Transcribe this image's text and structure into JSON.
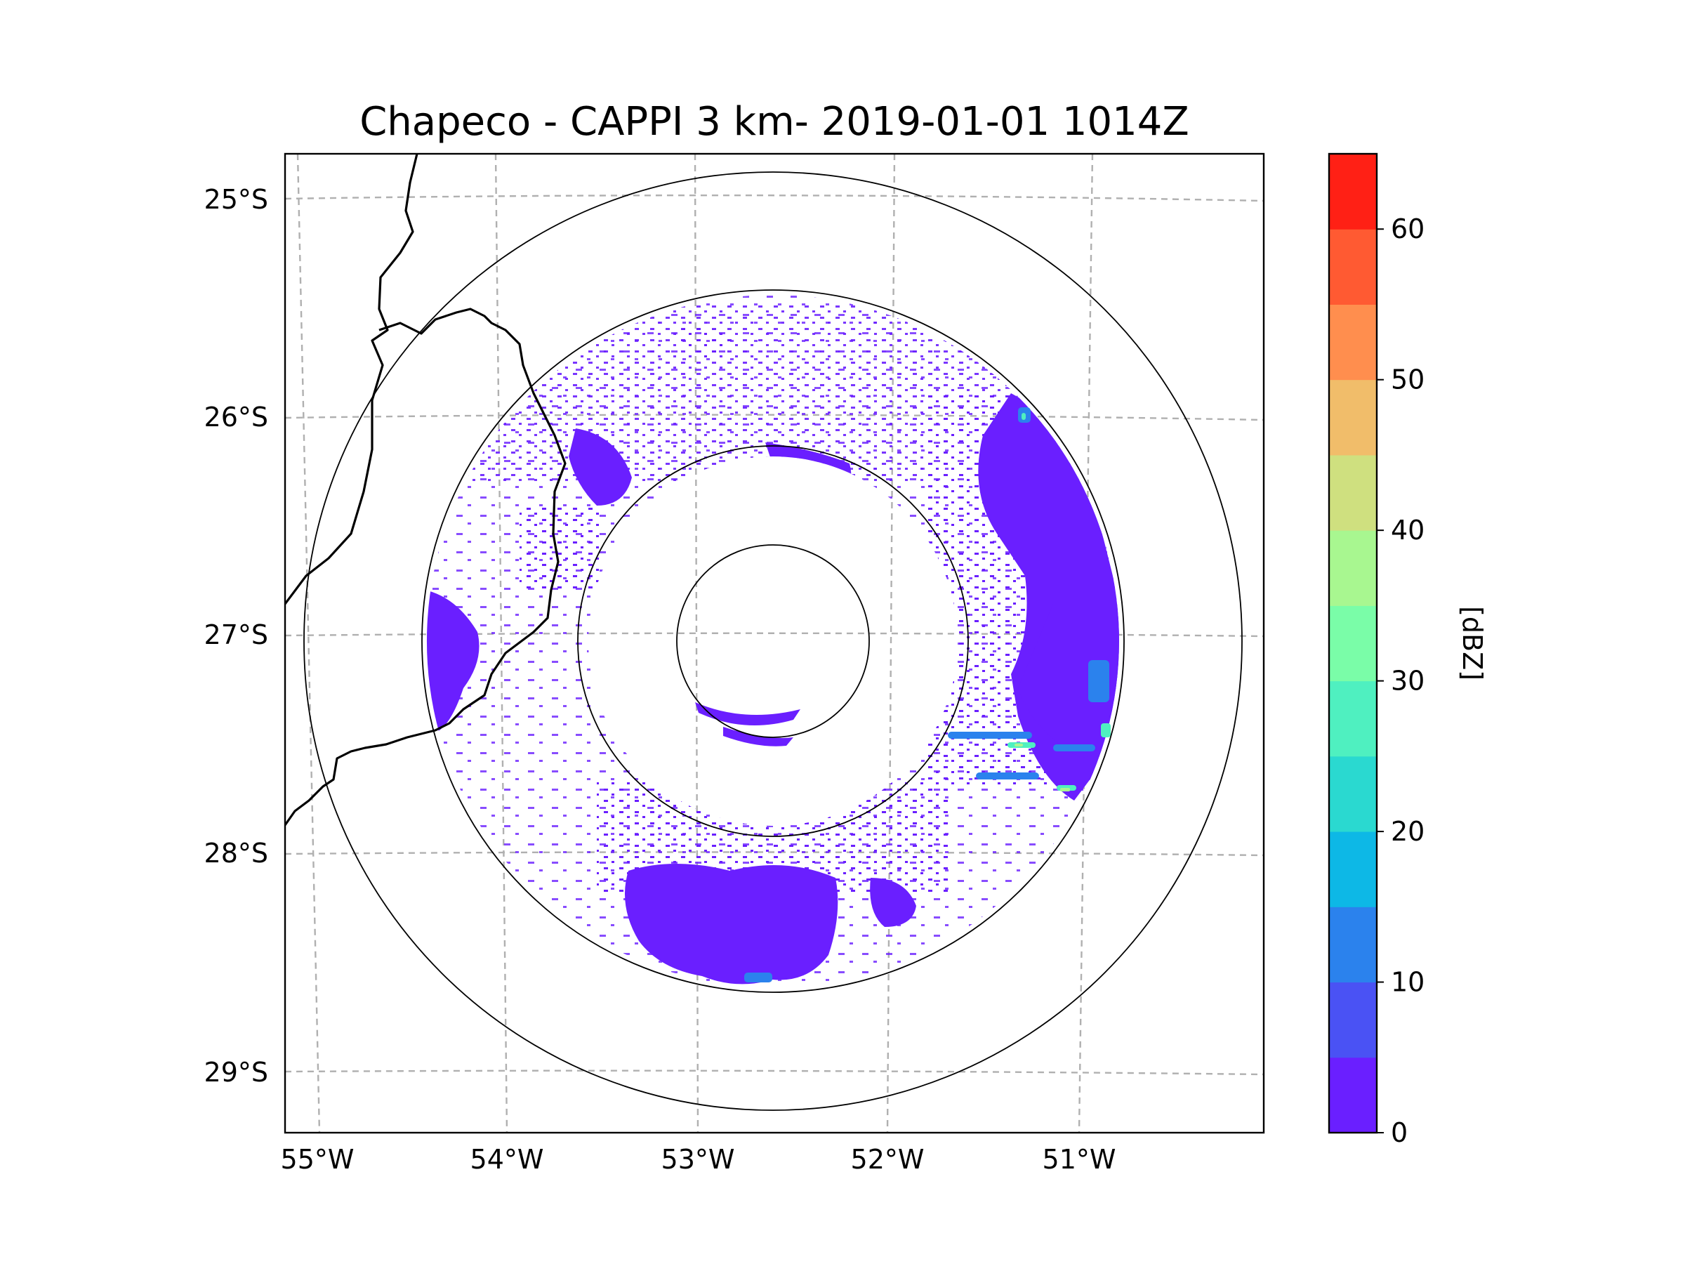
{
  "title": "Chapeco - CAPPI 3 km- 2019-01-01 1014Z",
  "map": {
    "lon_ticks": [
      "55°W",
      "54°W",
      "53°W",
      "52°W",
      "51°W"
    ],
    "lat_ticks": [
      "25°S",
      "26°S",
      "27°S",
      "28°S",
      "29°S"
    ],
    "range_rings_km": [
      50,
      100,
      200,
      250
    ]
  },
  "colorbar": {
    "label": "[dBZ]",
    "ticks": [
      "0",
      "10",
      "20",
      "30",
      "40",
      "50",
      "60"
    ],
    "min": 0,
    "max": 65,
    "step": 5,
    "colors": [
      "#6a1fff",
      "#4a52f4",
      "#2b82ed",
      "#0db8e6",
      "#2ad9d0",
      "#4ff0c0",
      "#7afda8",
      "#a8f790",
      "#cfe07f",
      "#f1bd6a",
      "#ff8e4e",
      "#ff5a32",
      "#ff2015"
    ]
  },
  "chart_data": {
    "type": "radar_ppi",
    "title": "Chapeco - CAPPI 3 km- 2019-01-01 1014Z",
    "xlabel": "",
    "ylabel": "",
    "x_tick_labels": [
      "55°W",
      "54°W",
      "53°W",
      "52°W",
      "51°W"
    ],
    "y_tick_labels": [
      "25°S",
      "26°S",
      "27°S",
      "28°S",
      "29°S"
    ],
    "colorbar_label": "[dBZ]",
    "colorbar_range": [
      0,
      65
    ],
    "colorbar_ticks": [
      0,
      10,
      20,
      30,
      40,
      50,
      60
    ],
    "field": "reflectivity",
    "level": "3 km"
  }
}
